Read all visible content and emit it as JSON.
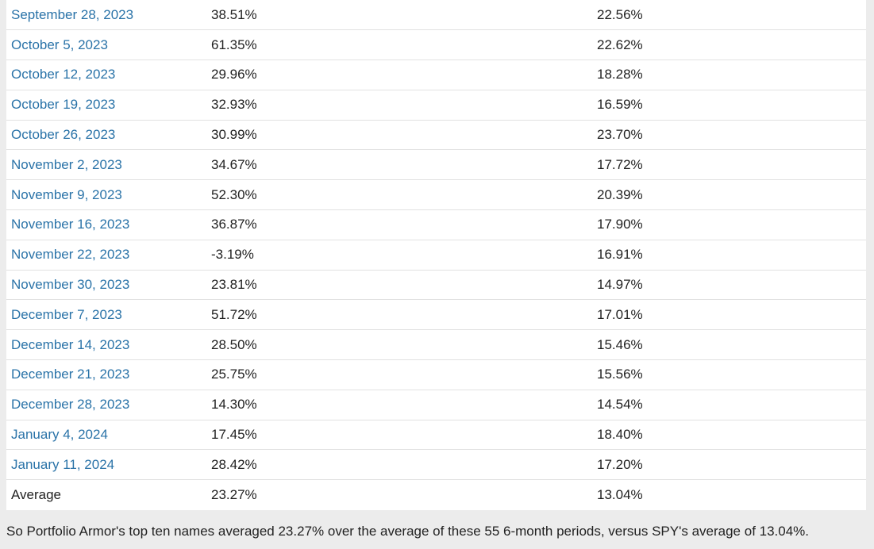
{
  "table": {
    "rows": [
      {
        "date": "September 28, 2023",
        "top_ten": "38.51%",
        "spy": "22.56%"
      },
      {
        "date": "October 5, 2023",
        "top_ten": "61.35%",
        "spy": "22.62%"
      },
      {
        "date": "October 12, 2023",
        "top_ten": "29.96%",
        "spy": "18.28%"
      },
      {
        "date": "October 19, 2023",
        "top_ten": "32.93%",
        "spy": "16.59%"
      },
      {
        "date": "October 26, 2023",
        "top_ten": "30.99%",
        "spy": "23.70%"
      },
      {
        "date": "November 2, 2023",
        "top_ten": "34.67%",
        "spy": "17.72%"
      },
      {
        "date": "November 9, 2023",
        "top_ten": "52.30%",
        "spy": "20.39%"
      },
      {
        "date": "November 16, 2023",
        "top_ten": "36.87%",
        "spy": "17.90%"
      },
      {
        "date": "November 22, 2023",
        "top_ten": "-3.19%",
        "spy": "16.91%"
      },
      {
        "date": "November 30, 2023",
        "top_ten": "23.81%",
        "spy": "14.97%"
      },
      {
        "date": "December 7, 2023",
        "top_ten": "51.72%",
        "spy": "17.01%"
      },
      {
        "date": "December 14, 2023",
        "top_ten": "28.50%",
        "spy": "15.46%"
      },
      {
        "date": "December 21, 2023",
        "top_ten": "25.75%",
        "spy": "15.56%"
      },
      {
        "date": "December 28, 2023",
        "top_ten": "14.30%",
        "spy": "14.54%"
      },
      {
        "date": "January 4, 2024",
        "top_ten": "17.45%",
        "spy": "18.40%"
      },
      {
        "date": "January 11, 2024",
        "top_ten": "28.42%",
        "spy": "17.20%"
      }
    ],
    "average": {
      "label": "Average",
      "top_ten": "23.27%",
      "spy": "13.04%"
    }
  },
  "summary": "So Portfolio Armor's top ten names averaged 23.27% over the average of these 55 6-month periods, versus SPY's average of 13.04%.",
  "colors": {
    "link": "#2a73a8",
    "text": "#222222",
    "page_background": "#ececec",
    "table_background": "#ffffff",
    "row_divider": "#e2e2e2"
  }
}
